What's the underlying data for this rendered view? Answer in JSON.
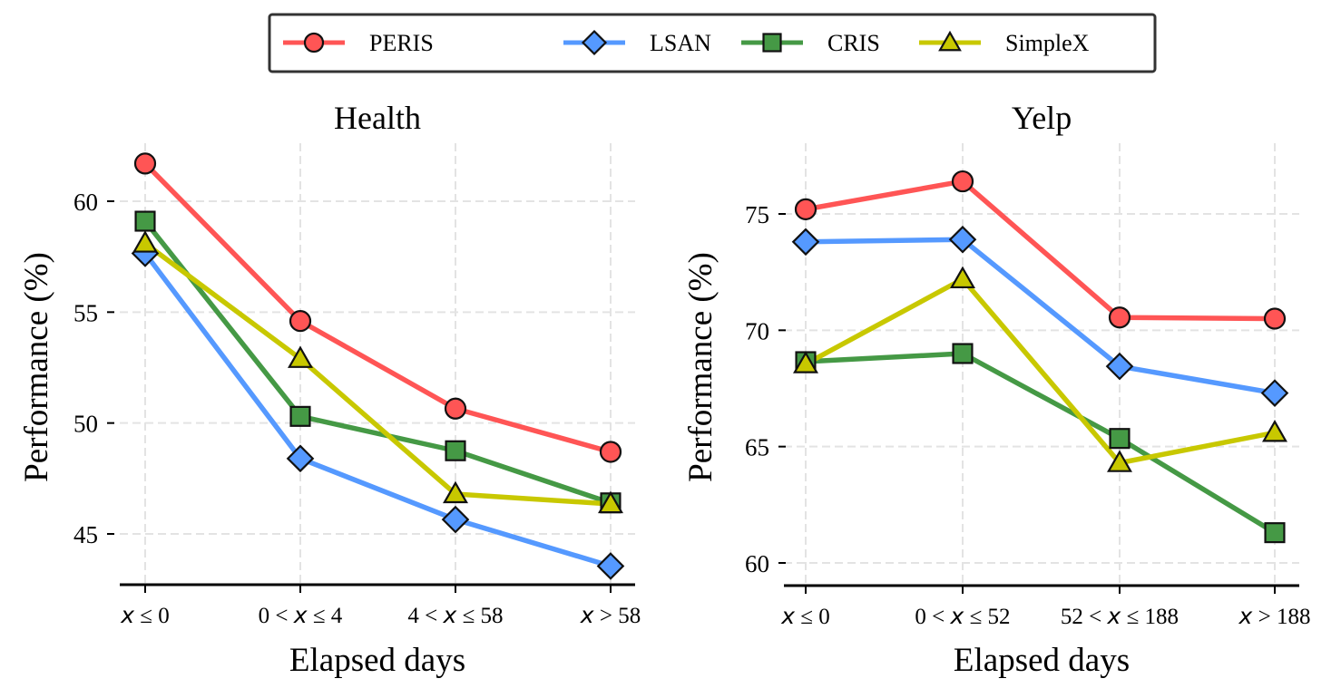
{
  "chart_data": {
    "type": "line",
    "legend": {
      "placement": "top-center",
      "entries": [
        {
          "name": "PERIS",
          "color": "#FF5555",
          "marker": "circle"
        },
        {
          "name": "LSAN",
          "color": "#5599FF",
          "marker": "diamond"
        },
        {
          "name": "CRIS",
          "color": "#459945",
          "marker": "square"
        },
        {
          "name": "SimpleX",
          "color": "#C8C800",
          "marker": "triangle"
        }
      ]
    },
    "panels": [
      {
        "title": "Health",
        "xlabel": "Elapsed days",
        "ylabel": "Performance (%)",
        "categories": [
          {
            "pre": "",
            "var": "x",
            "post": " ≤ 0"
          },
          {
            "pre": "0 < ",
            "var": "x",
            "post": " ≤ 4"
          },
          {
            "pre": "4 < ",
            "var": "x",
            "post": " ≤ 58"
          },
          {
            "pre": "",
            "var": "x",
            "post": " > 58"
          }
        ],
        "yticks": [
          45,
          50,
          55,
          60
        ],
        "ylim": [
          42.7,
          62.7
        ],
        "grid": true,
        "series": [
          {
            "name": "PERIS",
            "values": [
              61.7,
              54.6,
              50.65,
              48.7
            ]
          },
          {
            "name": "LSAN",
            "values": [
              57.65,
              48.4,
              45.65,
              43.55
            ]
          },
          {
            "name": "CRIS",
            "values": [
              59.1,
              50.3,
              48.75,
              46.4
            ]
          },
          {
            "name": "SimpleX",
            "values": [
              58.1,
              52.9,
              46.8,
              46.35
            ]
          }
        ]
      },
      {
        "title": "Yelp",
        "xlabel": "Elapsed days",
        "ylabel": "Performance (%)",
        "categories": [
          {
            "pre": "",
            "var": "x",
            "post": " ≤ 0"
          },
          {
            "pre": "0 < ",
            "var": "x",
            "post": " ≤ 52"
          },
          {
            "pre": "52 < ",
            "var": "x",
            "post": " ≤ 188"
          },
          {
            "pre": "",
            "var": "x",
            "post": " > 188"
          }
        ],
        "yticks": [
          60,
          65,
          70,
          75
        ],
        "ylim": [
          59.0,
          77.8
        ],
        "grid": true,
        "series": [
          {
            "name": "PERIS",
            "values": [
              75.2,
              76.4,
              70.55,
              70.5
            ]
          },
          {
            "name": "LSAN",
            "values": [
              73.8,
              73.9,
              68.45,
              67.3
            ]
          },
          {
            "name": "CRIS",
            "values": [
              68.65,
              69.0,
              65.35,
              61.3
            ]
          },
          {
            "name": "SimpleX",
            "values": [
              68.55,
              72.2,
              64.3,
              65.6
            ]
          }
        ]
      }
    ]
  }
}
